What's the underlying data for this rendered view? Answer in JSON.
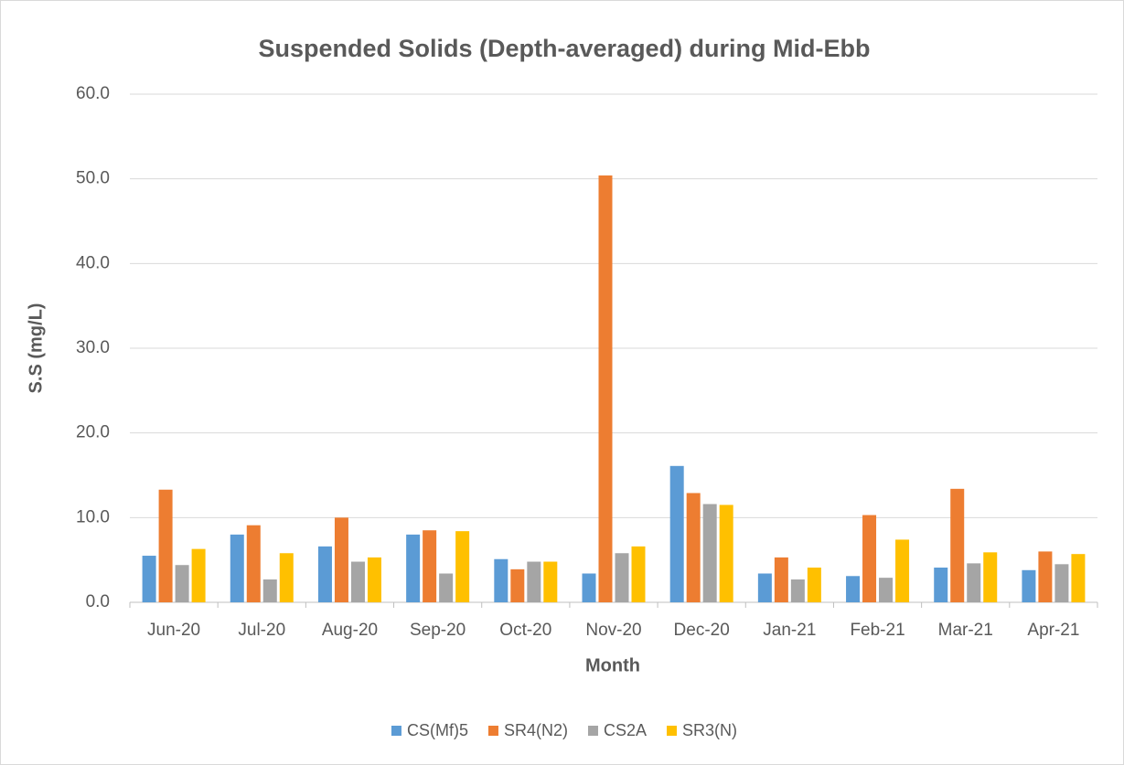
{
  "chart_data": {
    "type": "bar",
    "title": "Suspended Solids (Depth-averaged) during Mid-Ebb",
    "x_label": "Month",
    "y_label": "S.S (mg/L)",
    "categories": [
      "Jun-20",
      "Jul-20",
      "Aug-20",
      "Sep-20",
      "Oct-20",
      "Nov-20",
      "Dec-20",
      "Jan-21",
      "Feb-21",
      "Mar-21",
      "Apr-21"
    ],
    "series": [
      {
        "name": "CS(Mf)5",
        "color": "#5b9bd5",
        "values": [
          5.5,
          8.0,
          6.6,
          8.0,
          5.1,
          3.4,
          16.1,
          3.4,
          3.1,
          4.1,
          3.8
        ]
      },
      {
        "name": "SR4(N2)",
        "color": "#ed7d31",
        "values": [
          13.3,
          9.1,
          10.0,
          8.5,
          3.9,
          50.4,
          12.9,
          5.3,
          10.3,
          13.4,
          6.0
        ]
      },
      {
        "name": "CS2A",
        "color": "#a5a5a5",
        "values": [
          4.4,
          2.7,
          4.8,
          3.4,
          4.8,
          5.8,
          11.6,
          2.7,
          2.9,
          4.6,
          4.5
        ]
      },
      {
        "name": "SR3(N)",
        "color": "#ffc000",
        "values": [
          6.3,
          5.8,
          5.3,
          8.4,
          4.8,
          6.6,
          11.5,
          4.1,
          7.4,
          5.9,
          5.7
        ]
      }
    ],
    "ylim": [
      0,
      60
    ],
    "yticks": [
      {
        "value": 0,
        "label": "0.0"
      },
      {
        "value": 10,
        "label": "10.0"
      },
      {
        "value": 20,
        "label": "20.0"
      },
      {
        "value": 30,
        "label": "30.0"
      },
      {
        "value": 40,
        "label": "40.0"
      },
      {
        "value": 50,
        "label": "50.0"
      },
      {
        "value": 60,
        "label": "60.0"
      }
    ],
    "grid": true,
    "legend": "bottom"
  }
}
